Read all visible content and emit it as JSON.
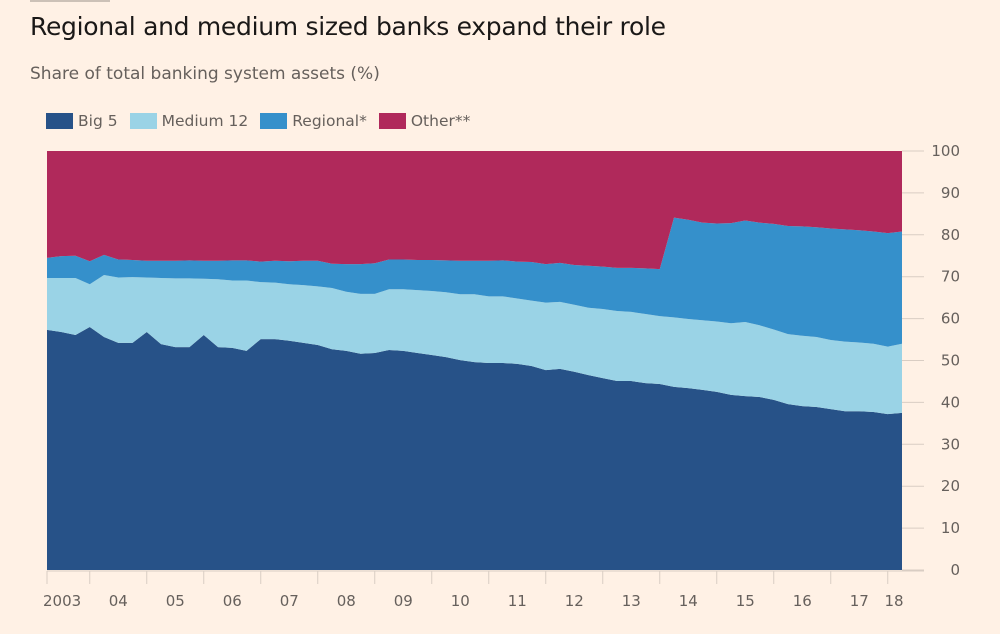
{
  "header": {
    "title": "Regional and medium sized banks expand their role",
    "subtitle": "Share of total banking system assets (%)"
  },
  "legend": [
    {
      "label": "Big 5",
      "color": "#275288"
    },
    {
      "label": "Medium 12",
      "color": "#9ad3e6"
    },
    {
      "label": "Regional*",
      "color": "#3590cb"
    },
    {
      "label": "Other**",
      "color": "#b0295b"
    }
  ],
  "chart_data": {
    "type": "area",
    "stacked": true,
    "title": "Regional and medium sized banks expand their role",
    "subtitle": "Share of total banking system assets (%)",
    "xlabel": "",
    "ylabel": "",
    "ylim": [
      0,
      100
    ],
    "yticks": [
      0,
      10,
      20,
      30,
      40,
      50,
      60,
      70,
      80,
      90,
      100
    ],
    "y_axis_side": "right",
    "xtick_labels": [
      "2003",
      "04",
      "05",
      "06",
      "07",
      "08",
      "09",
      "10",
      "11",
      "12",
      "13",
      "14",
      "15",
      "16",
      "17",
      "18"
    ],
    "x_start": "2003 Q2",
    "x_frequency": "quarterly",
    "legend_position": "top-left",
    "grid": false,
    "series": [
      {
        "name": "Big 5",
        "color": "#275288",
        "values": [
          57.3,
          56.8,
          56.1,
          58.0,
          55.6,
          54.2,
          54.2,
          56.8,
          53.9,
          53.2,
          53.2,
          56.1,
          53.2,
          53.0,
          52.3,
          55.1,
          55.1,
          54.7,
          54.2,
          53.7,
          52.7,
          52.3,
          51.6,
          51.8,
          52.5,
          52.3,
          51.8,
          51.3,
          50.8,
          50.1,
          49.6,
          49.4,
          49.4,
          49.2,
          48.7,
          47.7,
          48.0,
          47.3,
          46.5,
          45.8,
          45.1,
          45.1,
          44.6,
          44.4,
          43.7,
          43.4,
          43.0,
          42.5,
          41.8,
          41.5,
          41.3,
          40.6,
          39.6,
          39.1,
          38.9,
          38.4,
          37.9,
          37.9,
          37.7,
          37.2,
          37.5
        ]
      },
      {
        "name": "Medium 12",
        "color": "#9ad3e6",
        "values": [
          12.4,
          12.9,
          13.6,
          10.2,
          14.8,
          15.6,
          15.7,
          13.0,
          15.8,
          16.4,
          16.4,
          13.4,
          16.2,
          16.1,
          16.8,
          13.6,
          13.5,
          13.5,
          13.8,
          14.0,
          14.6,
          14.1,
          14.3,
          14.1,
          14.5,
          14.7,
          15.0,
          15.3,
          15.5,
          15.7,
          16.2,
          15.9,
          15.9,
          15.6,
          15.6,
          16.1,
          16.0,
          16.0,
          16.1,
          16.5,
          16.7,
          16.5,
          16.5,
          16.2,
          16.6,
          16.5,
          16.6,
          16.8,
          17.1,
          17.7,
          17.1,
          16.8,
          16.7,
          16.8,
          16.7,
          16.5,
          16.6,
          16.4,
          16.3,
          16.1,
          16.5
        ]
      },
      {
        "name": "Regional*",
        "color": "#3590cb",
        "values": [
          4.8,
          5.2,
          5.3,
          5.5,
          4.8,
          4.3,
          4.1,
          4.0,
          4.1,
          4.2,
          4.3,
          4.3,
          4.4,
          4.8,
          4.8,
          4.9,
          5.2,
          5.5,
          5.8,
          6.1,
          5.8,
          6.6,
          7.1,
          7.3,
          7.1,
          7.1,
          7.2,
          7.4,
          7.6,
          8.0,
          8.0,
          8.5,
          8.6,
          8.8,
          9.2,
          9.2,
          9.3,
          9.5,
          10.0,
          10.1,
          10.3,
          10.5,
          10.9,
          11.2,
          23.8,
          23.7,
          23.3,
          23.4,
          23.9,
          24.2,
          24.5,
          25.2,
          25.8,
          26.1,
          26.2,
          26.6,
          26.8,
          26.8,
          26.8,
          27.1,
          26.8
        ]
      },
      {
        "name": "Other**",
        "color": "#b0295b",
        "values": [
          25.5,
          25.1,
          25.0,
          26.3,
          24.8,
          25.9,
          26.0,
          26.2,
          26.2,
          26.2,
          26.1,
          26.2,
          26.2,
          26.1,
          26.1,
          26.4,
          26.2,
          26.3,
          26.2,
          26.2,
          26.9,
          27.0,
          27.0,
          26.8,
          25.9,
          25.9,
          26.0,
          26.0,
          26.1,
          26.2,
          26.2,
          26.2,
          26.1,
          26.4,
          26.5,
          27.0,
          26.7,
          27.2,
          27.4,
          27.6,
          27.9,
          27.9,
          28.0,
          28.2,
          15.9,
          16.4,
          17.1,
          17.3,
          17.2,
          16.6,
          17.1,
          17.4,
          17.9,
          18.0,
          18.2,
          18.5,
          18.7,
          18.9,
          19.2,
          19.6,
          19.2
        ]
      }
    ]
  }
}
